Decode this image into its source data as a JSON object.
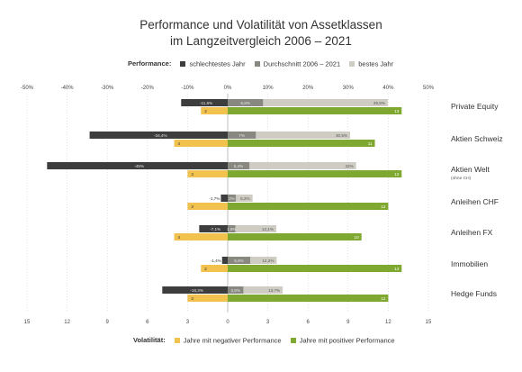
{
  "title_line1": "Performance und Volatilität von Assetklassen",
  "title_line2": "im Langzeitvergleich 2006 – 2021",
  "legend_top": {
    "label": "Performance:",
    "items": [
      {
        "label": "schlechtestes Jahr",
        "color": "#3d3d3d"
      },
      {
        "label": "Durchschnitt 2006 – 2021",
        "color": "#888780"
      },
      {
        "label": "bestes Jahr",
        "color": "#cfcdc3"
      }
    ]
  },
  "legend_bottom": {
    "label": "Volatilität:",
    "items": [
      {
        "label": "Jahre mit negativer Performance",
        "color": "#f2c24f"
      },
      {
        "label": "Jahre mit positiver Performance",
        "color": "#7ea830"
      }
    ]
  },
  "chart_data": {
    "type": "bar",
    "top_axis": {
      "ticks": [
        "-50%",
        "-40%",
        "-30%",
        "-20%",
        "-10%",
        "0%",
        "10%",
        "20%",
        "30%",
        "40%",
        "50%"
      ],
      "range": [
        -50,
        50
      ],
      "unit": "%"
    },
    "bottom_axis": {
      "ticks": [
        "15",
        "12",
        "9",
        "6",
        "3",
        "0",
        "3",
        "6",
        "9",
        "12",
        "15"
      ],
      "range": [
        -15,
        15
      ],
      "unit": "years"
    },
    "categories": [
      {
        "name": "Private Equity",
        "sub": ""
      },
      {
        "name": "Aktien Schweiz",
        "sub": ""
      },
      {
        "name": "Aktien Welt",
        "sub": "(ohne CH)"
      },
      {
        "name": "Anleihen CHF",
        "sub": ""
      },
      {
        "name": "Anleihen FX",
        "sub": ""
      },
      {
        "name": "Immobilien",
        "sub": ""
      },
      {
        "name": "Hedge Funds",
        "sub": ""
      }
    ],
    "performance": {
      "worst": [
        -11.6,
        -34.4,
        -45.0,
        -1.7,
        -7.1,
        -1.4,
        -16.3
      ],
      "average": [
        8.8,
        7.0,
        5.4,
        2.0,
        1.9,
        5.6,
        3.9
      ],
      "best": [
        39.9,
        30.5,
        32.0,
        6.2,
        12.1,
        12.2,
        13.7
      ],
      "worst_labels": [
        "-11,6%",
        "-34,4%",
        "-45%",
        "-1,7%",
        "-7,1%",
        "-1,4%",
        "-16,3%"
      ],
      "average_labels": [
        "8,8%",
        "7%",
        "5,4%",
        "2%",
        "1,9%",
        "5,6%",
        "3,9%"
      ],
      "best_labels": [
        "39,9%",
        "30,5%",
        "32%",
        "6,2%",
        "12,1%",
        "12,2%",
        "13,7%"
      ]
    },
    "volatility": {
      "negative_years": [
        2,
        4,
        3,
        3,
        4,
        2,
        3
      ],
      "positive_years": [
        13,
        11,
        13,
        12,
        10,
        13,
        12
      ]
    }
  }
}
